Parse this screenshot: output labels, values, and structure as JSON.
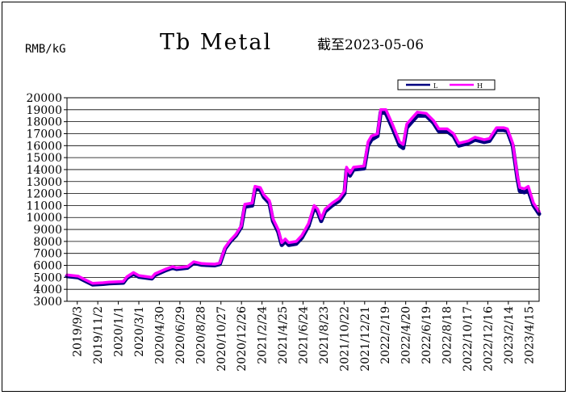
{
  "chart_data": {
    "type": "line",
    "title": "Tb Metal",
    "subtitle": "截至2023-05-06",
    "ylabel": "RMB/kG",
    "xlabel": "",
    "ylim": [
      3000,
      20000
    ],
    "ystep": 1000,
    "grid": true,
    "legend_position": "top-right",
    "x_tick_labels": [
      "2019/9/3",
      "2019/11/2",
      "2020/1/1",
      "2020/3/1",
      "2020/4/30",
      "2020/6/29",
      "2020/8/28",
      "2020/10/27",
      "2020/12/26",
      "2021/2/24",
      "2021/4/25",
      "2021/6/24",
      "2021/8/23",
      "2021/10/22",
      "2021/12/21",
      "2022/2/19",
      "2022/4/20",
      "2022/6/19",
      "2022/8/18",
      "2022/10/17",
      "2022/12/16",
      "2023/2/14",
      "2023/4/15"
    ],
    "x_range": [
      "2019-09-03",
      "2023-05-06"
    ],
    "series": [
      {
        "name": "L",
        "color": "#000080",
        "points": [
          [
            "2019-09-03",
            5100
          ],
          [
            "2019-10-05",
            5000
          ],
          [
            "2019-10-25",
            4700
          ],
          [
            "2019-11-15",
            4400
          ],
          [
            "2019-12-15",
            4450
          ],
          [
            "2020-01-01",
            4500
          ],
          [
            "2020-02-10",
            4550
          ],
          [
            "2020-02-20",
            4950
          ],
          [
            "2020-03-10",
            5300
          ],
          [
            "2020-03-25",
            5050
          ],
          [
            "2020-05-01",
            4900
          ],
          [
            "2020-05-10",
            5200
          ],
          [
            "2020-06-10",
            5600
          ],
          [
            "2020-06-29",
            5800
          ],
          [
            "2020-07-10",
            5700
          ],
          [
            "2020-08-10",
            5800
          ],
          [
            "2020-08-28",
            6200
          ],
          [
            "2020-09-20",
            6050
          ],
          [
            "2020-10-27",
            6000
          ],
          [
            "2020-11-10",
            6100
          ],
          [
            "2020-11-25",
            7400
          ],
          [
            "2020-12-10",
            8000
          ],
          [
            "2020-12-26",
            8500
          ],
          [
            "2021-01-10",
            9200
          ],
          [
            "2021-01-20",
            10900
          ],
          [
            "2021-02-10",
            11000
          ],
          [
            "2021-02-18",
            12400
          ],
          [
            "2021-03-05",
            12300
          ],
          [
            "2021-03-15",
            11700
          ],
          [
            "2021-03-31",
            11200
          ],
          [
            "2021-04-10",
            9700
          ],
          [
            "2021-04-25",
            8800
          ],
          [
            "2021-05-05",
            7700
          ],
          [
            "2021-05-15",
            8000
          ],
          [
            "2021-05-25",
            7700
          ],
          [
            "2021-06-15",
            7800
          ],
          [
            "2021-07-01",
            8300
          ],
          [
            "2021-07-20",
            9300
          ],
          [
            "2021-08-05",
            10800
          ],
          [
            "2021-08-15",
            10500
          ],
          [
            "2021-08-25",
            9700
          ],
          [
            "2021-09-05",
            10500
          ],
          [
            "2021-09-25",
            11000
          ],
          [
            "2021-10-15",
            11400
          ],
          [
            "2021-10-30",
            12000
          ],
          [
            "2021-11-05",
            14000
          ],
          [
            "2021-11-15",
            13500
          ],
          [
            "2021-11-25",
            14000
          ],
          [
            "2021-12-25",
            14100
          ],
          [
            "2022-01-05",
            16000
          ],
          [
            "2022-01-15",
            16500
          ],
          [
            "2022-02-01",
            16800
          ],
          [
            "2022-02-10",
            18800
          ],
          [
            "2022-02-25",
            18700
          ],
          [
            "2022-03-15",
            17500
          ],
          [
            "2022-04-05",
            16000
          ],
          [
            "2022-04-15",
            15800
          ],
          [
            "2022-04-25",
            17500
          ],
          [
            "2022-05-10",
            18000
          ],
          [
            "2022-05-25",
            18500
          ],
          [
            "2022-06-19",
            18500
          ],
          [
            "2022-07-10",
            17900
          ],
          [
            "2022-07-25",
            17200
          ],
          [
            "2022-08-18",
            17200
          ],
          [
            "2022-09-05",
            16800
          ],
          [
            "2022-09-20",
            16000
          ],
          [
            "2022-10-17",
            16200
          ],
          [
            "2022-11-05",
            16500
          ],
          [
            "2022-12-01",
            16300
          ],
          [
            "2022-12-16",
            16400
          ],
          [
            "2023-01-05",
            17300
          ],
          [
            "2023-01-25",
            17300
          ],
          [
            "2023-02-05",
            17200
          ],
          [
            "2023-02-20",
            16000
          ],
          [
            "2023-03-05",
            13300
          ],
          [
            "2023-03-12",
            12200
          ],
          [
            "2023-03-25",
            12100
          ],
          [
            "2023-04-05",
            12300
          ],
          [
            "2023-04-20",
            11000
          ],
          [
            "2023-05-06",
            10300
          ]
        ]
      },
      {
        "name": "H",
        "color": "#ff00ff",
        "points": [
          [
            "2019-09-03",
            5200
          ],
          [
            "2019-10-05",
            5100
          ],
          [
            "2019-10-25",
            4800
          ],
          [
            "2019-11-15",
            4500
          ],
          [
            "2019-12-15",
            4550
          ],
          [
            "2020-01-01",
            4600
          ],
          [
            "2020-02-10",
            4650
          ],
          [
            "2020-02-20",
            5050
          ],
          [
            "2020-03-10",
            5400
          ],
          [
            "2020-03-25",
            5150
          ],
          [
            "2020-05-01",
            5000
          ],
          [
            "2020-05-10",
            5300
          ],
          [
            "2020-06-10",
            5700
          ],
          [
            "2020-06-29",
            5900
          ],
          [
            "2020-07-10",
            5800
          ],
          [
            "2020-08-10",
            5900
          ],
          [
            "2020-08-28",
            6300
          ],
          [
            "2020-09-20",
            6150
          ],
          [
            "2020-10-27",
            6100
          ],
          [
            "2020-11-10",
            6200
          ],
          [
            "2020-11-25",
            7500
          ],
          [
            "2020-12-10",
            8100
          ],
          [
            "2020-12-26",
            8600
          ],
          [
            "2021-01-10",
            9300
          ],
          [
            "2021-01-20",
            11100
          ],
          [
            "2021-02-10",
            11200
          ],
          [
            "2021-02-18",
            12600
          ],
          [
            "2021-03-05",
            12500
          ],
          [
            "2021-03-15",
            11900
          ],
          [
            "2021-03-31",
            11400
          ],
          [
            "2021-04-10",
            9900
          ],
          [
            "2021-04-25",
            9000
          ],
          [
            "2021-05-05",
            7900
          ],
          [
            "2021-05-15",
            8200
          ],
          [
            "2021-05-25",
            7900
          ],
          [
            "2021-06-15",
            8000
          ],
          [
            "2021-07-01",
            8500
          ],
          [
            "2021-07-20",
            9500
          ],
          [
            "2021-08-05",
            11000
          ],
          [
            "2021-08-15",
            10700
          ],
          [
            "2021-08-25",
            9900
          ],
          [
            "2021-09-05",
            10700
          ],
          [
            "2021-09-25",
            11200
          ],
          [
            "2021-10-15",
            11600
          ],
          [
            "2021-10-30",
            12200
          ],
          [
            "2021-11-05",
            14200
          ],
          [
            "2021-11-15",
            13700
          ],
          [
            "2021-11-25",
            14200
          ],
          [
            "2021-12-25",
            14300
          ],
          [
            "2022-01-05",
            16300
          ],
          [
            "2022-01-15",
            16800
          ],
          [
            "2022-02-01",
            17000
          ],
          [
            "2022-02-10",
            19000
          ],
          [
            "2022-02-25",
            19000
          ],
          [
            "2022-03-15",
            17800
          ],
          [
            "2022-04-05",
            16300
          ],
          [
            "2022-04-15",
            16100
          ],
          [
            "2022-04-25",
            17800
          ],
          [
            "2022-05-10",
            18300
          ],
          [
            "2022-05-25",
            18800
          ],
          [
            "2022-06-19",
            18700
          ],
          [
            "2022-07-10",
            18100
          ],
          [
            "2022-07-25",
            17400
          ],
          [
            "2022-08-18",
            17400
          ],
          [
            "2022-09-05",
            17000
          ],
          [
            "2022-09-20",
            16200
          ],
          [
            "2022-10-17",
            16400
          ],
          [
            "2022-11-05",
            16700
          ],
          [
            "2022-12-01",
            16500
          ],
          [
            "2022-12-16",
            16600
          ],
          [
            "2023-01-05",
            17500
          ],
          [
            "2023-01-25",
            17500
          ],
          [
            "2023-02-05",
            17400
          ],
          [
            "2023-02-20",
            16200
          ],
          [
            "2023-03-05",
            13500
          ],
          [
            "2023-03-12",
            12500
          ],
          [
            "2023-03-25",
            12400
          ],
          [
            "2023-04-05",
            12600
          ],
          [
            "2023-04-20",
            11200
          ],
          [
            "2023-05-06",
            10500
          ]
        ]
      }
    ]
  }
}
